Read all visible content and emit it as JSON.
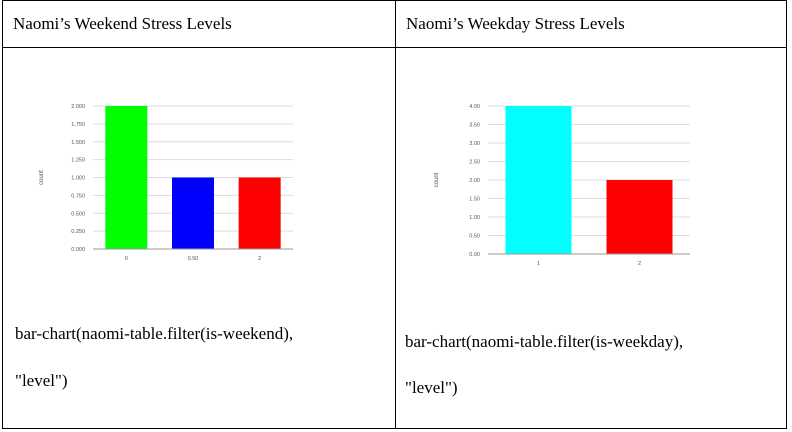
{
  "table": {
    "left": {
      "title": "Naomi’s Weekend Stress Levels",
      "code_line1": "bar-chart(naomi-table.filter(is-weekend),",
      "code_line2": "\"level\")"
    },
    "right": {
      "title": "Naomi’s Weekday Stress Levels",
      "code_line1": "bar-chart(naomi-table.filter(is-weekday),",
      "code_line2": "\"level\")"
    }
  },
  "chart_data": [
    {
      "type": "bar",
      "categories": [
        "0",
        "0.50",
        "2"
      ],
      "values": [
        2,
        1,
        1
      ],
      "colors": [
        "#00ff00",
        "#0000ff",
        "#ff0000"
      ],
      "ylabel": "count",
      "ylim": [
        0,
        2
      ],
      "yticks": [
        0,
        0.25,
        0.5,
        0.75,
        1,
        1.25,
        1.5,
        1.75,
        2
      ],
      "ytick_labels": [
        "0.000",
        "0.250",
        "0.500",
        "0.750",
        "1.000",
        "1.250",
        "1.500",
        "1.750",
        "2.000"
      ],
      "grid": true
    },
    {
      "type": "bar",
      "categories": [
        "1",
        "2"
      ],
      "values": [
        4,
        2
      ],
      "colors": [
        "#00ffff",
        "#ff0000"
      ],
      "ylabel": "count",
      "ylim": [
        0,
        4
      ],
      "yticks": [
        0,
        0.5,
        1,
        1.5,
        2,
        2.5,
        3,
        3.5,
        4
      ],
      "ytick_labels": [
        "0.00",
        "0.50",
        "1.00",
        "1.50",
        "2.00",
        "2.50",
        "3.00",
        "3.50",
        "4.00"
      ],
      "grid": true
    }
  ]
}
